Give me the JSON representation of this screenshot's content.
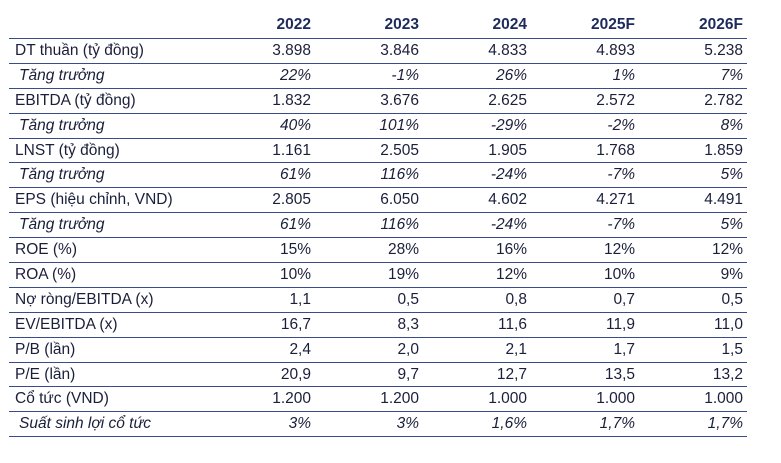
{
  "table": {
    "headers": [
      "",
      "2022",
      "2023",
      "2024",
      "2025F",
      "2026F"
    ],
    "rows": [
      {
        "label": "DT thuần (tỷ đồng)",
        "kind": "metric",
        "values": [
          "3.898",
          "3.846",
          "4.833",
          "4.893",
          "5.238"
        ]
      },
      {
        "label": "Tăng trưởng",
        "kind": "growth",
        "values": [
          "22%",
          "-1%",
          "26%",
          "1%",
          "7%"
        ]
      },
      {
        "label": "EBITDA (tỷ đồng)",
        "kind": "metric",
        "values": [
          "1.832",
          "3.676",
          "2.625",
          "2.572",
          "2.782"
        ]
      },
      {
        "label": "Tăng trưởng",
        "kind": "growth",
        "values": [
          "40%",
          "101%",
          "-29%",
          "-2%",
          "8%"
        ]
      },
      {
        "label": "LNST (tỷ đồng)",
        "kind": "metric",
        "values": [
          "1.161",
          "2.505",
          "1.905",
          "1.768",
          "1.859"
        ]
      },
      {
        "label": "Tăng trưởng",
        "kind": "growth",
        "values": [
          "61%",
          "116%",
          "-24%",
          "-7%",
          "5%"
        ]
      },
      {
        "label": "EPS (hiệu chỉnh, VND)",
        "kind": "metric",
        "values": [
          "2.805",
          "6.050",
          "4.602",
          "4.271",
          "4.491"
        ]
      },
      {
        "label": "Tăng trưởng",
        "kind": "growth",
        "values": [
          "61%",
          "116%",
          "-24%",
          "-7%",
          "5%"
        ]
      },
      {
        "label": "ROE (%)",
        "kind": "metric",
        "values": [
          "15%",
          "28%",
          "16%",
          "12%",
          "12%"
        ]
      },
      {
        "label": "ROA (%)",
        "kind": "metric",
        "values": [
          "10%",
          "19%",
          "12%",
          "10%",
          "9%"
        ]
      },
      {
        "label": "Nợ ròng/EBITDA (x)",
        "kind": "metric",
        "values": [
          "1,1",
          "0,5",
          "0,8",
          "0,7",
          "0,5"
        ]
      },
      {
        "label": "EV/EBITDA (x)",
        "kind": "metric",
        "values": [
          "16,7",
          "8,3",
          "11,6",
          "11,9",
          "11,0"
        ]
      },
      {
        "label": "P/B (lần)",
        "kind": "metric",
        "values": [
          "2,4",
          "2,0",
          "2,1",
          "1,7",
          "1,5"
        ]
      },
      {
        "label": "P/E (lần)",
        "kind": "metric",
        "values": [
          "20,9",
          "9,7",
          "12,7",
          "13,5",
          "13,2"
        ]
      },
      {
        "label": "Cổ tức (VND)",
        "kind": "metric",
        "values": [
          "1.200",
          "1.200",
          "1.000",
          "1.000",
          "1.000"
        ]
      },
      {
        "label": "Suất sinh lợi cổ tức",
        "kind": "yield",
        "values": [
          "3%",
          "3%",
          "1,6%",
          "1,7%",
          "1,7%"
        ]
      }
    ]
  },
  "colors": {
    "text": "#1a1f3a",
    "header_text": "#1d2b5c",
    "rule": "#3a4a8a"
  }
}
